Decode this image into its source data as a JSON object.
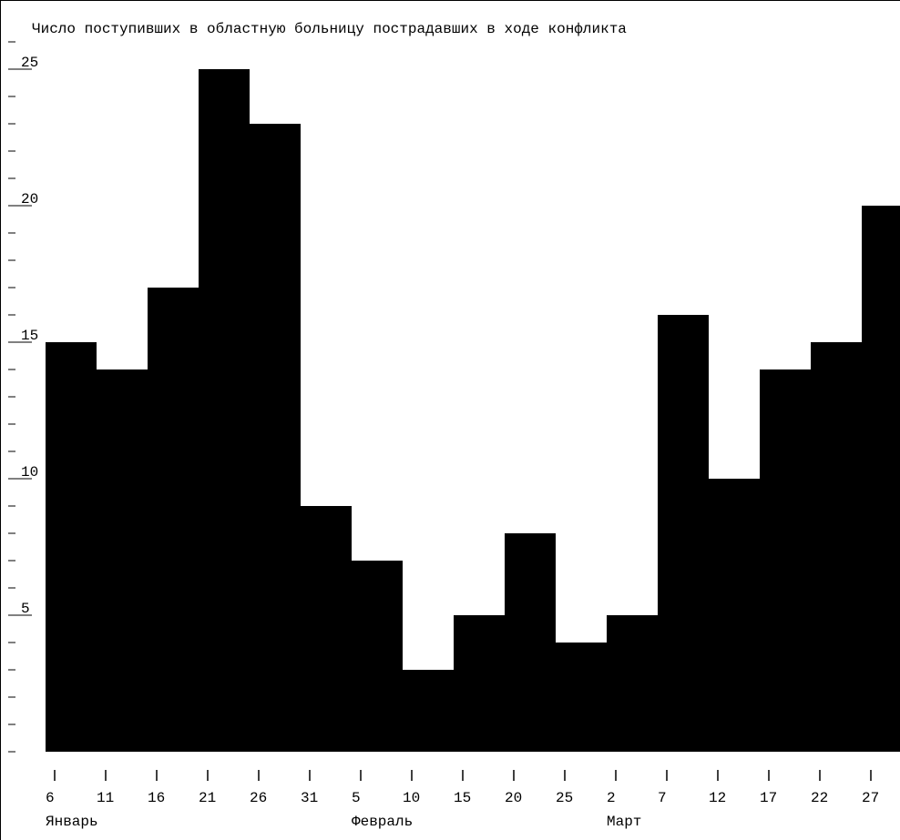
{
  "chart_data": {
    "type": "bar",
    "title": "Число поступивших в областную больницу пострадавших в ходе конфликта",
    "xlabel": "",
    "ylabel": "",
    "ylim": [
      0,
      25
    ],
    "y_ticks": [
      "5",
      "10",
      "15",
      "20",
      "25"
    ],
    "x_tick_labels": [
      "6",
      "11",
      "16",
      "21",
      "26",
      "31",
      "5",
      "10",
      "15",
      "20",
      "25",
      "2",
      "7",
      "12",
      "17",
      "22",
      "27"
    ],
    "month_labels": [
      {
        "label": "Январь",
        "at_tick": 0
      },
      {
        "label": "Февраль",
        "at_tick": 6
      },
      {
        "label": "Март",
        "at_tick": 11
      }
    ],
    "categories": [
      "6",
      "11",
      "16",
      "21",
      "26",
      "31",
      "5",
      "10",
      "15",
      "20",
      "25",
      "2",
      "7",
      "12",
      "17",
      "22",
      "27"
    ],
    "values": [
      15,
      14,
      17,
      25,
      23,
      9,
      7,
      3,
      5,
      8,
      4,
      5,
      16,
      10,
      14,
      15,
      20
    ],
    "bar_color": "#000000",
    "background": "#ffffff",
    "grid": false
  }
}
